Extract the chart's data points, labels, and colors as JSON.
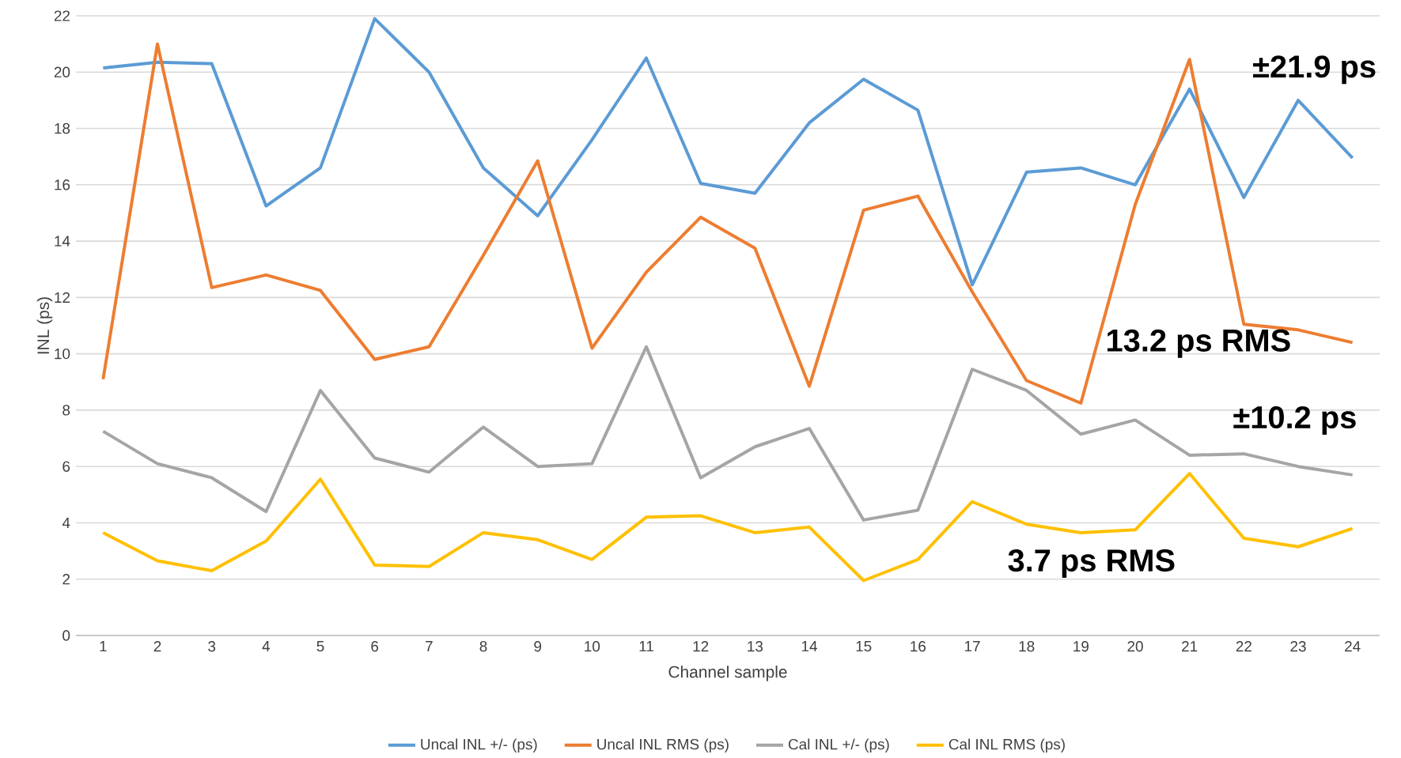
{
  "chart_data": {
    "type": "line",
    "xlabel": "Channel sample",
    "ylabel": "INL (ps)",
    "categories": [
      "1",
      "2",
      "3",
      "4",
      "5",
      "6",
      "7",
      "8",
      "9",
      "10",
      "11",
      "12",
      "13",
      "14",
      "15",
      "16",
      "17",
      "18",
      "19",
      "20",
      "21",
      "22",
      "23",
      "24"
    ],
    "ylim": [
      0,
      22
    ],
    "yticks": [
      0,
      2,
      4,
      6,
      8,
      10,
      12,
      14,
      16,
      18,
      20,
      22
    ],
    "grid": "y",
    "legend": "bottom",
    "series": [
      {
        "name": "Uncal INL +/- (ps)",
        "color": "#5b9bd5",
        "values": [
          20.15,
          20.35,
          20.3,
          15.25,
          16.6,
          21.9,
          20.0,
          16.6,
          14.9,
          17.6,
          20.5,
          16.05,
          15.7,
          18.2,
          19.75,
          18.65,
          12.45,
          16.45,
          16.6,
          16.0,
          19.4,
          15.55,
          19.0,
          16.95
        ]
      },
      {
        "name": "Uncal INL RMS (ps)",
        "color": "#ed7d31",
        "values": [
          9.1,
          21.0,
          12.35,
          12.8,
          12.25,
          9.8,
          10.25,
          13.5,
          16.85,
          10.2,
          12.9,
          14.85,
          13.75,
          8.85,
          15.1,
          15.6,
          12.2,
          9.05,
          8.25,
          15.3,
          20.45,
          11.05,
          10.85,
          10.4
        ]
      },
      {
        "name": "Cal INL +/- (ps)",
        "color": "#a5a5a5",
        "values": [
          7.25,
          6.1,
          5.6,
          4.4,
          8.7,
          6.3,
          5.8,
          7.4,
          6.0,
          6.1,
          10.25,
          5.6,
          6.7,
          7.35,
          4.1,
          4.45,
          9.45,
          8.7,
          7.15,
          7.65,
          6.4,
          6.45,
          6.0,
          5.7
        ]
      },
      {
        "name": "Cal INL RMS (ps)",
        "color": "#ffc000",
        "values": [
          3.65,
          2.65,
          2.3,
          3.35,
          5.55,
          2.5,
          2.45,
          3.65,
          3.4,
          2.7,
          4.2,
          4.25,
          3.65,
          3.85,
          1.95,
          2.7,
          4.75,
          3.95,
          3.65,
          3.75,
          5.75,
          3.45,
          3.15,
          3.8
        ]
      }
    ],
    "annotations": [
      "±21.9 ps",
      "13.2 ps RMS",
      "±10.2 ps",
      "3.7 ps RMS"
    ]
  }
}
